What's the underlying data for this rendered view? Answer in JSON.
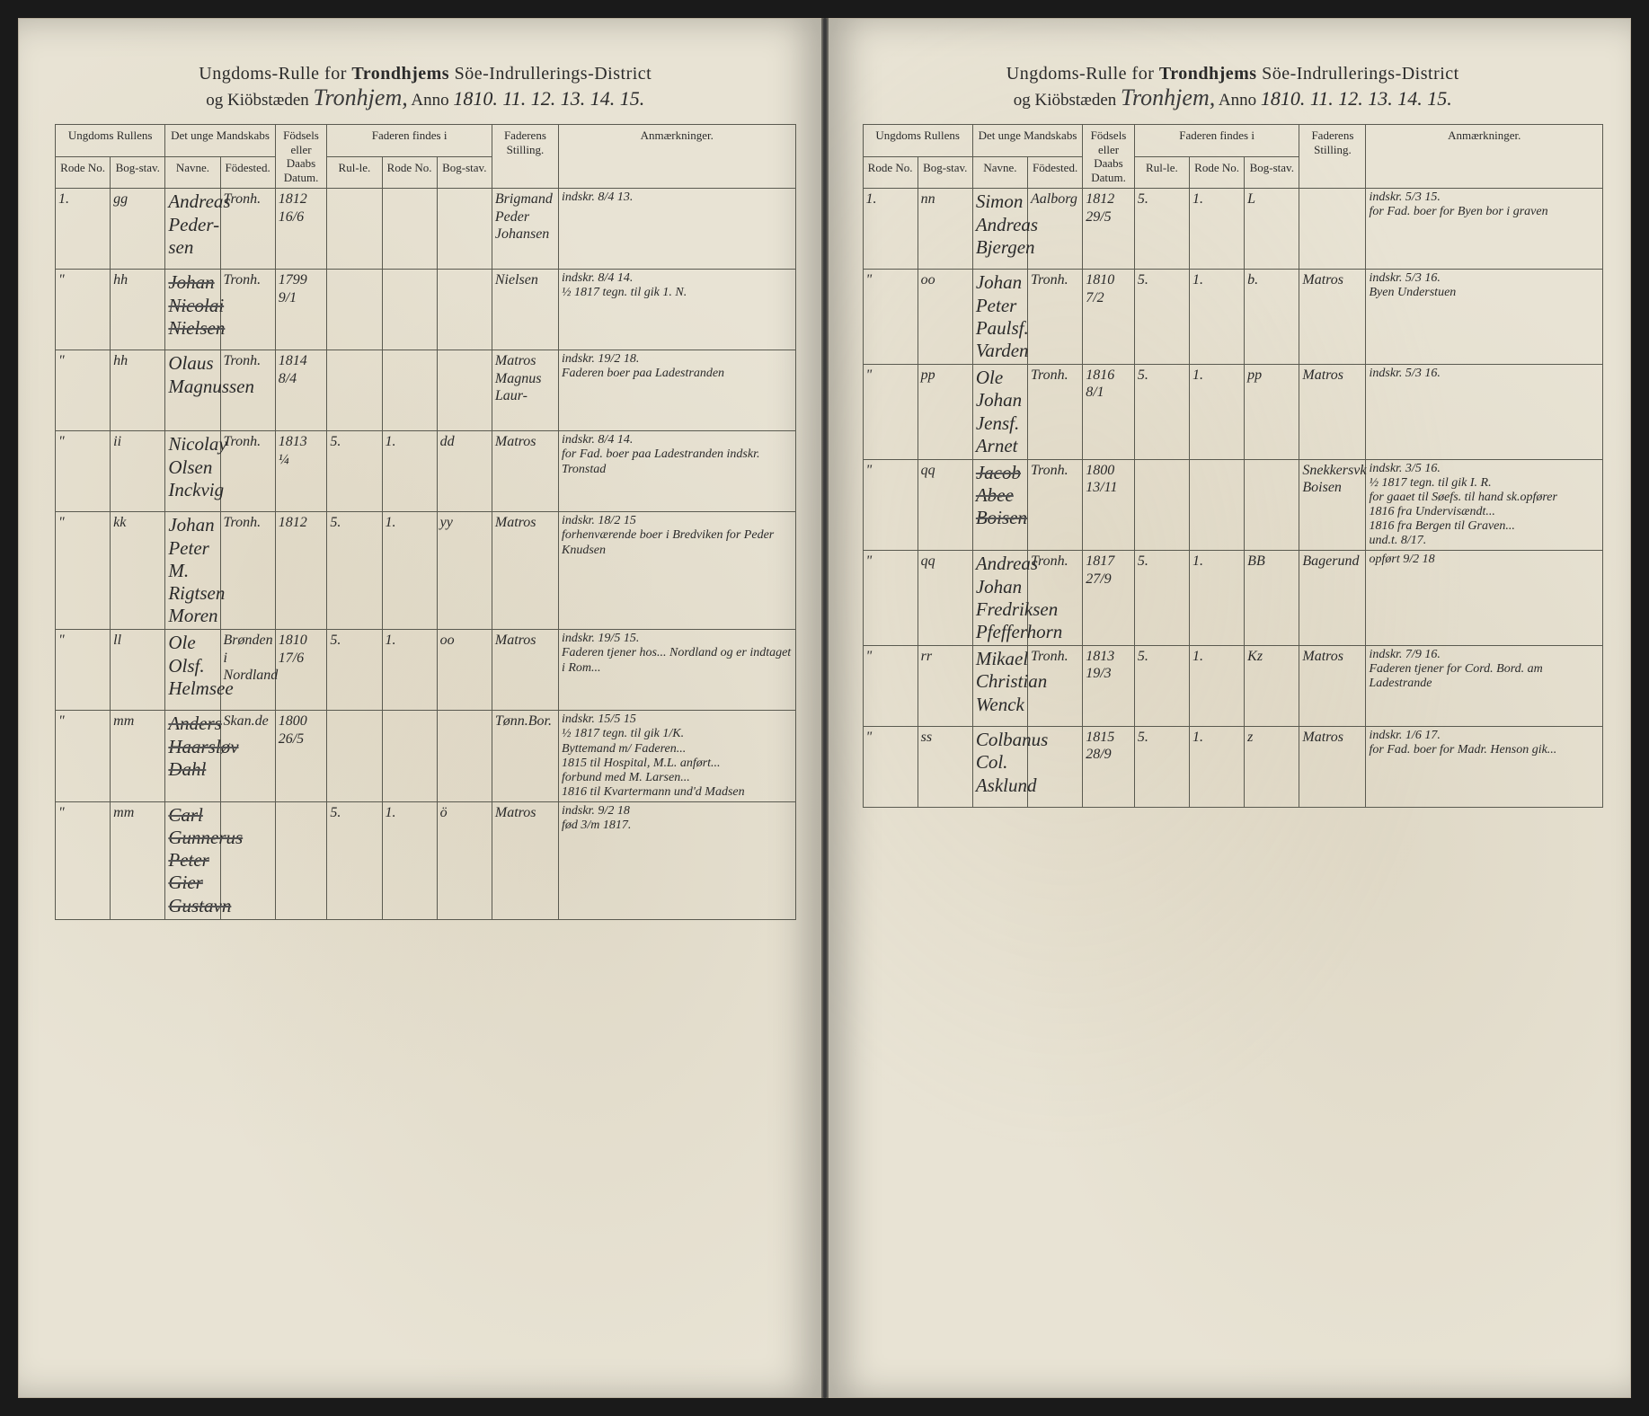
{
  "header": {
    "line1_prefix": "Ungdoms-Rulle for",
    "district": "Trondhjems",
    "line1_suffix": "Söe-Indrullerings-District",
    "line2_prefix": "og Kiöbstæden",
    "town_script": "Tronhjem,",
    "anno_label": "Anno",
    "years": "1810. 11. 12. 13. 14. 15."
  },
  "columns": {
    "group_rullens": "Ungdoms Rullens",
    "rode": "Rode No.",
    "bogstav": "Bog-stav.",
    "group_mand": "Det unge Mandskabs",
    "navne": "Navne.",
    "fodested": "Födested.",
    "datum": "Födsels eller Daabs Datum.",
    "group_fader": "Faderen findes i",
    "rul": "Rul-le.",
    "rodeno": "Rode No.",
    "bog2": "Bog-stav.",
    "stilling": "Faderens Stilling.",
    "anm": "Anmærkninger."
  },
  "left_rows": [
    {
      "rode": "1.",
      "bog": "gg",
      "navn": "Andreas Peder-\nsen",
      "sted": "Tronh.",
      "dato": "1812\n16/6",
      "rul": "",
      "rno": "",
      "b2": "",
      "stil": "Brigmand Peder Johansen",
      "anm": "indskr. 8/4 13."
    },
    {
      "rode": "\"",
      "bog": "hh",
      "navn": "Johan Nicolai\nNielsen",
      "sted": "Tronh.",
      "dato": "1799\n9/1",
      "rul": "",
      "rno": "",
      "b2": "",
      "stil": "Nielsen",
      "anm": "indskr. 8/4 14.\n½ 1817 tegn. til gik 1. N.",
      "struck": true
    },
    {
      "rode": "\"",
      "bog": "hh",
      "navn": "Olaus Magnussen",
      "sted": "Tronh.",
      "dato": "1814\n8/4",
      "rul": "",
      "rno": "",
      "b2": "",
      "stil": "Matros Magnus Laur-",
      "anm": "indskr. 19/2 18.\nFaderen boer paa Ladestranden"
    },
    {
      "rode": "\"",
      "bog": "ii",
      "navn": "Nicolay Olsen\nInckvig",
      "sted": "Tronh.",
      "dato": "1813\n¼",
      "rul": "5.",
      "rno": "1.",
      "b2": "dd",
      "stil": "Matros",
      "anm": "indskr. 8/4 14.\nfor Fad. boer paa Ladestranden indskr. Tronstad"
    },
    {
      "rode": "\"",
      "bog": "kk",
      "navn": "Johan Peter M.\nRigtsen Moren",
      "sted": "Tronh.",
      "dato": "1812",
      "rul": "5.",
      "rno": "1.",
      "b2": "yy",
      "stil": "Matros",
      "anm": "indskr. 18/2 15\nforhenværende boer i Bredviken for Peder Knudsen"
    },
    {
      "rode": "\"",
      "bog": "ll",
      "navn": "Ole Olsf. Helmsee",
      "sted": "Brønden i Nordland",
      "dato": "1810\n17/6",
      "rul": "5.",
      "rno": "1.",
      "b2": "oo",
      "stil": "Matros",
      "anm": "indskr. 19/5 15.\nFaderen tjener hos... Nordland og er indtaget i Rom..."
    },
    {
      "rode": "\"",
      "bog": "mm",
      "navn": "Anders Haarsløv\nDahl",
      "sted": "Skan.de",
      "dato": "1800\n26/5",
      "rul": "",
      "rno": "",
      "b2": "",
      "stil": "Tønn.Bor.",
      "anm": "indskr. 15/5 15\n½ 1817 tegn. til gik 1/K.\nByttemand m/ Faderen...\n1815 til Hospital, M.L. anført...\nforbund med M. Larsen...\n1816 til Kvartermann und'd Madsen",
      "struck": true
    },
    {
      "rode": "\"",
      "bog": "mm",
      "navn": "Carl Gunnerus Peter\nGier Gustavn",
      "sted": "",
      "dato": "",
      "rul": "5.",
      "rno": "1.",
      "b2": "ö",
      "stil": "Matros",
      "anm": "indskr. 9/2 18\nfød 3/m 1817.",
      "struck": true
    }
  ],
  "right_rows": [
    {
      "rode": "1.",
      "bog": "nn",
      "navn": "Simon Andreas\nBjergen",
      "sted": "Aalborg",
      "dato": "1812\n29/5",
      "rul": "5.",
      "rno": "1.",
      "b2": "L",
      "stil": "",
      "anm": "indskr. 5/3 15.\nfor Fad. boer for Byen bor i graven"
    },
    {
      "rode": "\"",
      "bog": "oo",
      "navn": "Johan Peter\nPaulsf. Varden",
      "sted": "Tronh.",
      "dato": "1810\n7/2",
      "rul": "5.",
      "rno": "1.",
      "b2": "b.",
      "stil": "Matros",
      "anm": "indskr. 5/3 16.\nByen Understuen"
    },
    {
      "rode": "\"",
      "bog": "pp",
      "navn": "Ole Johan Jensf.\nArnet",
      "sted": "Tronh.",
      "dato": "1816\n8/1",
      "rul": "5.",
      "rno": "1.",
      "b2": "pp",
      "stil": "Matros",
      "anm": "indskr. 5/3 16."
    },
    {
      "rode": "\"",
      "bog": "qq",
      "navn": "Jacob Abee\nBoisen",
      "sted": "Tronh.",
      "dato": "1800\n13/11",
      "rul": "",
      "rno": "",
      "b2": "",
      "stil": "Snekkersvk Boisen",
      "anm": "indskr. 3/5 16.\n½ 1817 tegn. til gik I. R.\nfor gaaet til Søefs. til hand sk.opfører\n1816 fra Undervisændt...\n1816 fra Bergen til Graven...\nund.t. 8/17.",
      "struck": true
    },
    {
      "rode": "\"",
      "bog": "qq",
      "navn": "Andreas Johan\nFredriksen Pfefferhorn",
      "sted": "Tronh.",
      "dato": "1817\n27/9",
      "rul": "5.",
      "rno": "1.",
      "b2": "BB",
      "stil": "Bagerund",
      "anm": "opført 9/2 18"
    },
    {
      "rode": "\"",
      "bog": "rr",
      "navn": "Mikael Christian\nWenck",
      "sted": "Tronh.",
      "dato": "1813\n19/3",
      "rul": "5.",
      "rno": "1.",
      "b2": "Kz",
      "stil": "Matros",
      "anm": "indskr. 7/9 16.\nFaderen tjener for Cord. Bord. am Ladestrande"
    },
    {
      "rode": "\"",
      "bog": "ss",
      "navn": "Colbanus Col.\nAsklund",
      "sted": "",
      "dato": "1815\n28/9",
      "rul": "5.",
      "rno": "1.",
      "b2": "z",
      "stil": "Matros",
      "anm": "indskr. 1/6 17.\nfor Fad. boer for Madr. Henson gik..."
    }
  ]
}
